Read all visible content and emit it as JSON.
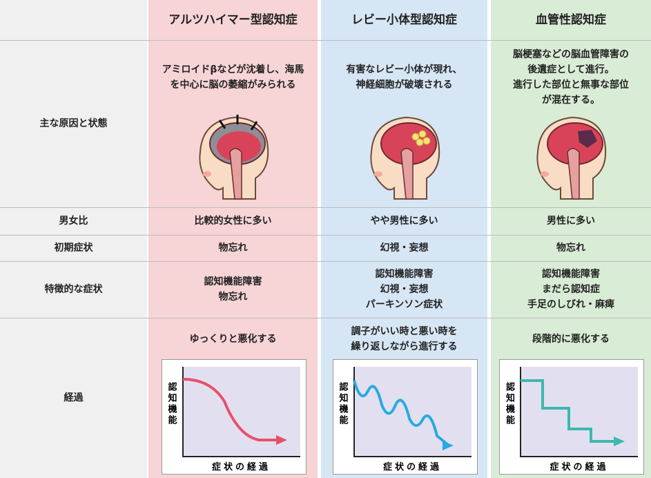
{
  "table": {
    "columns": [
      "アルツハイマー型認知症",
      "レビー小体型認知症",
      "血管性認知症"
    ],
    "rows": [
      {
        "label": "主な原因と状態",
        "cells": [
          [
            "アミロイドβなどが沈着し、海馬",
            "を中心に脳の萎縮がみられる"
          ],
          [
            "有害なレビー小体が現れ、",
            "神経細胞が破壊される"
          ],
          [
            "脳梗塞などの脳血管障害の",
            "後遺症として進行。",
            "進行した部位と無事な部位",
            "が混在する。"
          ]
        ]
      },
      {
        "label": "男女比",
        "cells": [
          [
            "比較的女性に多い"
          ],
          [
            "やや男性に多い"
          ],
          [
            "男性に多い"
          ]
        ]
      },
      {
        "label": "初期症状",
        "cells": [
          [
            "物忘れ"
          ],
          [
            "幻視・妄想"
          ],
          [
            "物忘れ"
          ]
        ]
      },
      {
        "label": "特徴的な症状",
        "cells": [
          [
            "認知機能障害",
            "物忘れ"
          ],
          [
            "認知機能障害",
            "幻視・妄想",
            "パーキンソン症状"
          ],
          [
            "認知機能障害",
            "まだら認知症",
            "手足のしびれ・麻痺"
          ]
        ]
      },
      {
        "label": "経過",
        "cells": [
          [
            "ゆっくりと悪化する"
          ],
          [
            "調子がいい時と悪い時を",
            "繰り返しながら進行する"
          ],
          [
            "段階的に悪化する"
          ]
        ]
      }
    ]
  },
  "graph": {
    "y_label": "認知機能",
    "x_label": "症状の経過"
  }
}
